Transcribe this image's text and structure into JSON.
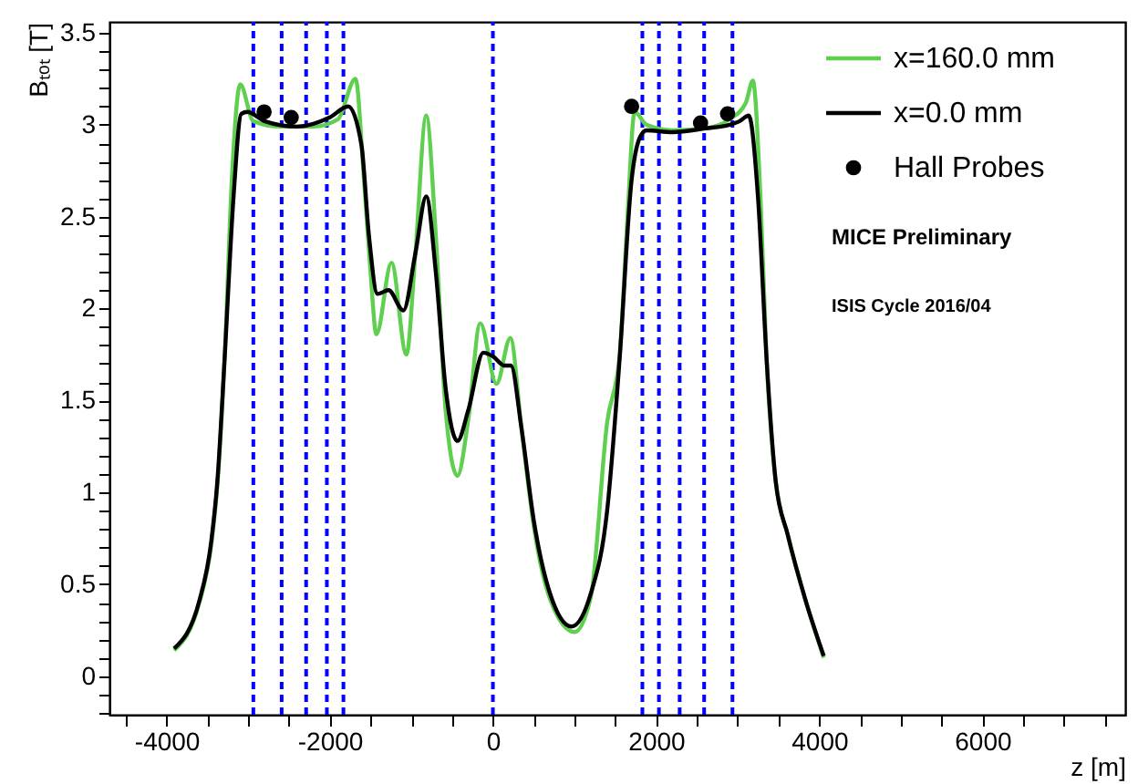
{
  "chart_data": {
    "type": "line",
    "xlabel": "z [m]",
    "ylabel": "Bₜₒₜ [T]",
    "xlim": [
      -4700,
      7750
    ],
    "ylim": [
      -0.21,
      3.56
    ],
    "xticks": [
      {
        "value": -4500,
        "label": null
      },
      -4000,
      {
        "value": -3500,
        "label": null
      },
      {
        "value": -3000,
        "label": null
      },
      {
        "value": -2500,
        "label": null
      },
      -2000,
      {
        "value": -1500,
        "label": null
      },
      {
        "value": -1000,
        "label": null
      },
      {
        "value": -500,
        "label": null
      },
      0,
      {
        "value": 500,
        "label": null
      },
      {
        "value": 1000,
        "label": null
      },
      {
        "value": 1500,
        "label": null
      },
      2000,
      {
        "value": 2500,
        "label": null
      },
      {
        "value": 3000,
        "label": null
      },
      {
        "value": 3500,
        "label": null
      },
      4000,
      {
        "value": 4500,
        "label": null
      },
      {
        "value": 5000,
        "label": null
      },
      {
        "value": 5500,
        "label": null
      },
      6000,
      {
        "value": 6500,
        "label": null
      },
      {
        "value": 7000,
        "label": null
      },
      {
        "value": 7500,
        "label": null
      }
    ],
    "yticks": [
      {
        "value": -0.2,
        "label": null
      },
      {
        "value": -0.1,
        "label": null
      },
      0,
      {
        "value": 0.1,
        "label": null
      },
      {
        "value": 0.2,
        "label": null
      },
      {
        "value": 0.3,
        "label": null
      },
      {
        "value": 0.4,
        "label": null
      },
      0.5,
      {
        "value": 0.6,
        "label": null
      },
      {
        "value": 0.7,
        "label": null
      },
      {
        "value": 0.8,
        "label": null
      },
      {
        "value": 0.9,
        "label": null
      },
      1,
      {
        "value": 1.1,
        "label": null
      },
      {
        "value": 1.2,
        "label": null
      },
      {
        "value": 1.3,
        "label": null
      },
      {
        "value": 1.4,
        "label": null
      },
      1.5,
      {
        "value": 1.6,
        "label": null
      },
      {
        "value": 1.7,
        "label": null
      },
      {
        "value": 1.8,
        "label": null
      },
      {
        "value": 1.9,
        "label": null
      },
      2,
      {
        "value": 2.1,
        "label": null
      },
      {
        "value": 2.2,
        "label": null
      },
      {
        "value": 2.3,
        "label": null
      },
      {
        "value": 2.4,
        "label": null
      },
      2.5,
      {
        "value": 2.6,
        "label": null
      },
      {
        "value": 2.7,
        "label": null
      },
      {
        "value": 2.8,
        "label": null
      },
      {
        "value": 2.9,
        "label": null
      },
      3,
      {
        "value": 3.1,
        "label": null
      },
      {
        "value": 3.2,
        "label": null
      },
      {
        "value": 3.3,
        "label": null
      },
      {
        "value": 3.4,
        "label": null
      },
      3.5
    ],
    "grid": false,
    "legend": "top right",
    "line_style": "solid",
    "series": [
      {
        "name": "x=160.0 mm",
        "color": "#5fcf4f",
        "type": "line",
        "x": [
          -3907,
          -3598,
          -3450,
          -3377,
          -3289,
          -3200,
          -3097,
          -2936,
          -2600,
          -2200,
          -1900,
          -1684,
          -1580,
          -1500,
          -1428,
          -1243,
          -1060,
          -950,
          -817,
          -700,
          -580,
          -435,
          -300,
          -155,
          44,
          214,
          350,
          500,
          700,
          1000,
          1200,
          1400,
          1552,
          1650,
          1737,
          1883,
          2200,
          2600,
          2900,
          3100,
          3186,
          3280,
          3355,
          3466,
          3613,
          3834,
          4055
        ],
        "values": [
          0.14,
          0.4,
          0.72,
          1.04,
          1.72,
          2.7,
          3.22,
          3.02,
          2.99,
          2.99,
          3.03,
          3.25,
          2.7,
          2.2,
          1.86,
          2.25,
          1.75,
          2.3,
          3.05,
          2.4,
          1.45,
          1.09,
          1.4,
          1.92,
          1.59,
          1.84,
          1.35,
          0.82,
          0.42,
          0.24,
          0.43,
          1.38,
          1.74,
          2.5,
          3.07,
          3.0,
          2.97,
          2.98,
          3.03,
          3.12,
          3.24,
          2.6,
          1.72,
          1.06,
          0.77,
          0.41,
          0.1
        ]
      },
      {
        "name": "x=0.0 mm",
        "color": "#000000",
        "type": "line",
        "x": [
          -3907,
          -3598,
          -3450,
          -3377,
          -3289,
          -3180,
          -3084,
          -3009,
          -2800,
          -2400,
          -2000,
          -1773,
          -1611,
          -1520,
          -1413,
          -1280,
          -1097,
          -950,
          -817,
          -700,
          -580,
          -435,
          -300,
          -117,
          0,
          139,
          220,
          350,
          500,
          700,
          964,
          1200,
          1400,
          1552,
          1700,
          1800,
          1883,
          2200,
          2600,
          2900,
          3024,
          3135,
          3250,
          3355,
          3466,
          3613,
          3834,
          4055
        ],
        "values": [
          0.15,
          0.41,
          0.74,
          1.06,
          1.72,
          2.6,
          3.06,
          3.07,
          3.02,
          2.99,
          3.04,
          3.1,
          2.89,
          2.4,
          2.08,
          2.1,
          1.99,
          2.3,
          2.61,
          2.2,
          1.57,
          1.28,
          1.45,
          1.76,
          1.74,
          1.69,
          1.69,
          1.35,
          0.85,
          0.45,
          0.27,
          0.45,
          0.9,
          1.72,
          2.7,
          2.93,
          2.97,
          2.96,
          2.98,
          3.0,
          3.02,
          3.05,
          2.6,
          1.72,
          1.06,
          0.77,
          0.41,
          0.11
        ]
      },
      {
        "name": "Hall Probes",
        "color": "#000000",
        "type": "scatter",
        "marker": "circle",
        "x": [
          -2804,
          -2472,
          1700,
          2545,
          2876
        ],
        "values": [
          3.07,
          3.04,
          3.1,
          3.01,
          3.06
        ]
      }
    ],
    "ref_lines": [
      {
        "axis": "x",
        "value": -2936,
        "color": "#0000ff",
        "line_style": "dashed"
      },
      {
        "axis": "x",
        "value": -2589,
        "color": "#0000ff",
        "line_style": "dashed"
      },
      {
        "axis": "x",
        "value": -2289,
        "color": "#0000ff",
        "line_style": "dashed"
      },
      {
        "axis": "x",
        "value": -2035,
        "color": "#0000ff",
        "line_style": "dashed"
      },
      {
        "axis": "x",
        "value": -1832,
        "color": "#0000ff",
        "line_style": "dashed"
      },
      {
        "axis": "x",
        "value": 0,
        "color": "#0000ff",
        "line_style": "dashed"
      },
      {
        "axis": "x",
        "value": 1832,
        "color": "#0000ff",
        "line_style": "dashed"
      },
      {
        "axis": "x",
        "value": 2035,
        "color": "#0000ff",
        "line_style": "dashed"
      },
      {
        "axis": "x",
        "value": 2289,
        "color": "#0000ff",
        "line_style": "dashed"
      },
      {
        "axis": "x",
        "value": 2589,
        "color": "#0000ff",
        "line_style": "dashed"
      },
      {
        "axis": "x",
        "value": 2936,
        "color": "#0000ff",
        "line_style": "dashed"
      }
    ],
    "annotations": [
      "MICE Preliminary",
      "ISIS Cycle 2016/04"
    ]
  }
}
